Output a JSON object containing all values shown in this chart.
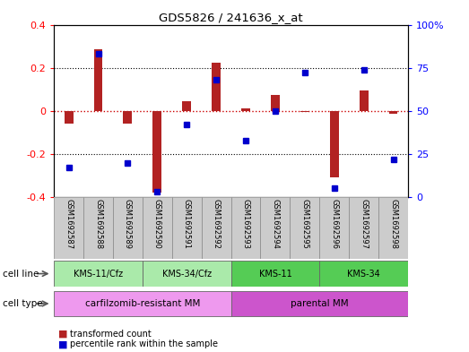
{
  "title": "GDS5826 / 241636_x_at",
  "samples": [
    "GSM1692587",
    "GSM1692588",
    "GSM1692589",
    "GSM1692590",
    "GSM1692591",
    "GSM1692592",
    "GSM1692593",
    "GSM1692594",
    "GSM1692595",
    "GSM1692596",
    "GSM1692597",
    "GSM1692598"
  ],
  "transformed_count": [
    -0.06,
    0.285,
    -0.06,
    -0.38,
    0.045,
    0.225,
    0.01,
    0.075,
    -0.005,
    -0.31,
    0.095,
    -0.015
  ],
  "percentile_rank": [
    17,
    83,
    20,
    3,
    42,
    68,
    33,
    50,
    72,
    5,
    74,
    22
  ],
  "bar_color": "#B22222",
  "dot_color": "#0000CD",
  "zero_line_color": "#CC0000",
  "grid_color": "#000000",
  "cell_line_groups": [
    {
      "label": "KMS-11/Cfz",
      "start": 0,
      "end": 2,
      "color": "#AAEAAA"
    },
    {
      "label": "KMS-34/Cfz",
      "start": 3,
      "end": 5,
      "color": "#AAEAAA"
    },
    {
      "label": "KMS-11",
      "start": 6,
      "end": 8,
      "color": "#55CC55"
    },
    {
      "label": "KMS-34",
      "start": 9,
      "end": 11,
      "color": "#55CC55"
    }
  ],
  "cell_type_groups": [
    {
      "label": "carfilzomib-resistant MM",
      "start": 0,
      "end": 5,
      "color": "#EE99EE"
    },
    {
      "label": "parental MM",
      "start": 6,
      "end": 11,
      "color": "#CC55CC"
    }
  ],
  "cell_line_label": "cell line",
  "cell_type_label": "cell type",
  "ylim": [
    -0.4,
    0.4
  ],
  "y2lim": [
    0,
    100
  ],
  "yticks": [
    -0.4,
    -0.2,
    0.0,
    0.2,
    0.4
  ],
  "y2ticks": [
    0,
    25,
    50,
    75,
    100
  ],
  "ytick_labels": [
    "-0.4",
    "-0.2",
    "0",
    "0.2",
    "0.4"
  ],
  "y2tick_labels": [
    "0",
    "25",
    "50",
    "75",
    "100%"
  ],
  "legend_items": [
    {
      "label": "transformed count",
      "color": "#B22222"
    },
    {
      "label": "percentile rank within the sample",
      "color": "#0000CD"
    }
  ],
  "bar_width": 0.3
}
